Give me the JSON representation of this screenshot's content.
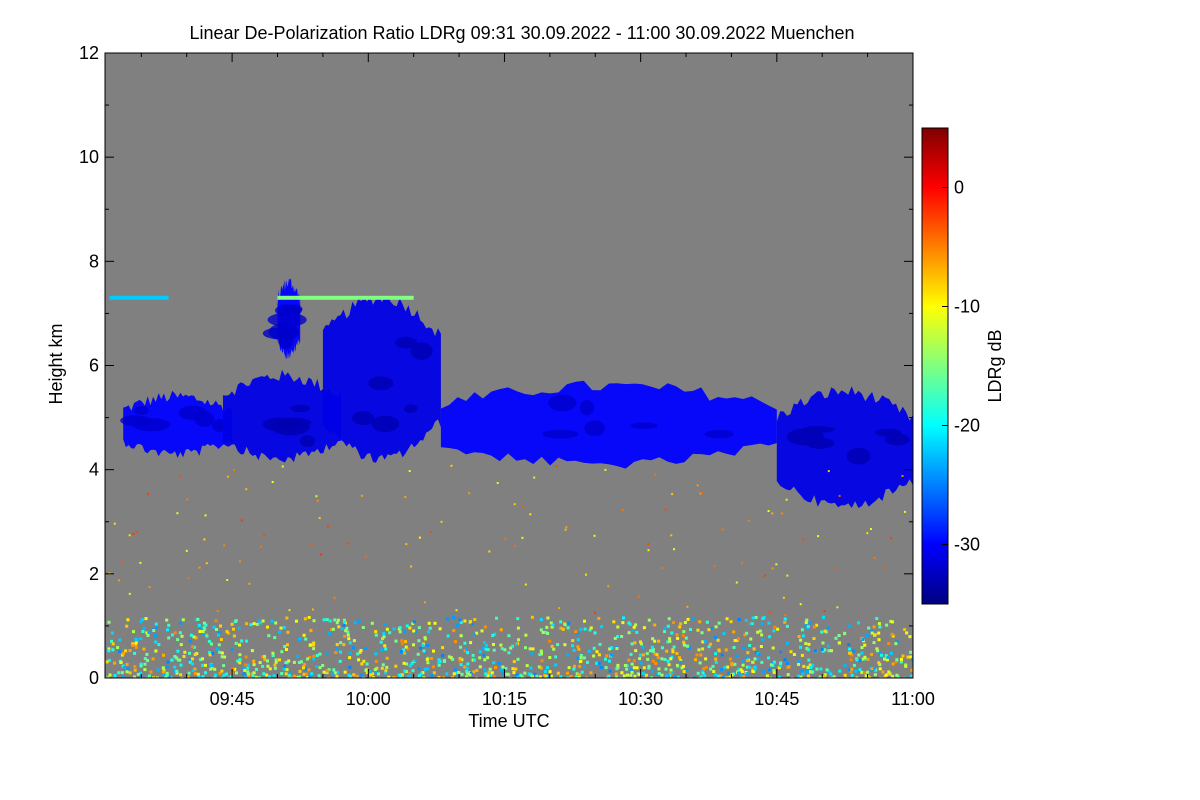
{
  "chart_data": {
    "type": "heatmap",
    "title": "Linear De-Polarization Ratio LDRg   09:31 30.09.2022 - 11:00 30.09.2022 Muenchen",
    "xlabel": "Time UTC",
    "ylabel": "Height km",
    "colorbar_label": "LDRg dB",
    "x_range_minutes": [
      571,
      660
    ],
    "x_ticks": [
      {
        "label": "09:45",
        "minutes": 585
      },
      {
        "label": "10:00",
        "minutes": 600
      },
      {
        "label": "10:15",
        "minutes": 615
      },
      {
        "label": "10:30",
        "minutes": 630
      },
      {
        "label": "10:45",
        "minutes": 645
      },
      {
        "label": "11:00",
        "minutes": 660
      }
    ],
    "ylim": [
      0,
      12
    ],
    "y_ticks": [
      0,
      2,
      4,
      6,
      8,
      10,
      12
    ],
    "colorbar_range": [
      -35,
      5
    ],
    "colorbar_ticks": [
      0,
      -10,
      -20,
      -30
    ],
    "background_color": "#808080",
    "cloud_layers": [
      {
        "name": "cirrus-fall-streak-1",
        "time": [
          573,
          585
        ],
        "height": [
          4.3,
          5.4
        ],
        "ldr_db": -30
      },
      {
        "name": "cirrus-fall-streak-2",
        "time": [
          584,
          597
        ],
        "height": [
          4.2,
          5.8
        ],
        "ldr_db": -31
      },
      {
        "name": "cirrus-upper-fragment",
        "time": [
          590,
          592.5
        ],
        "height": [
          6.2,
          7.6
        ],
        "ldr_db": -30
      },
      {
        "name": "cirrus-main-body",
        "time": [
          595,
          608
        ],
        "height": [
          4.2,
          7.3
        ],
        "ldr_db": -31
      },
      {
        "name": "cirrus-layer-mid",
        "time": [
          608,
          645
        ],
        "height": [
          4.1,
          5.6
        ],
        "ldr_db": -30
      },
      {
        "name": "cirrus-layer-right",
        "time": [
          645,
          660
        ],
        "height": [
          3.3,
          5.5
        ],
        "ldr_db": -31
      }
    ],
    "thin_layers": [
      {
        "name": "supercooled-layer-7km",
        "time": [
          571.5,
          578
        ],
        "height": 7.3,
        "ldr_db": -22
      },
      {
        "name": "supercooled-layer-7km-b",
        "time": [
          590,
          605
        ],
        "height": 7.3,
        "ldr_db": -15
      }
    ],
    "boundary_layer": {
      "time": [
        571,
        660
      ],
      "height": [
        0,
        1.2
      ],
      "ldr_db_range": [
        -25,
        -5
      ]
    }
  }
}
